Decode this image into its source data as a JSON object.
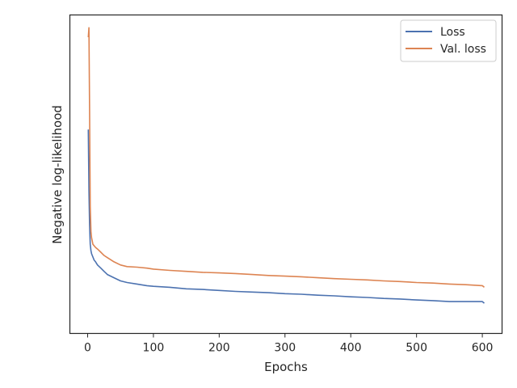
{
  "chart_data": {
    "type": "line",
    "title": "",
    "xlabel": "Epochs",
    "ylabel": "Negative log-likelihood",
    "xlim": [
      -27,
      630
    ],
    "ylim": [
      0,
      100
    ],
    "x_ticks": [
      0,
      100,
      200,
      300,
      400,
      500,
      600
    ],
    "y_ticks_shown": false,
    "grid": false,
    "legend_position": "top-right",
    "series": [
      {
        "name": "Loss",
        "color": "#4c72b0",
        "x": [
          1,
          2,
          3,
          4,
          5,
          6,
          7,
          8,
          10,
          12,
          15,
          20,
          25,
          30,
          40,
          50,
          60,
          75,
          90,
          100,
          125,
          150,
          175,
          200,
          225,
          250,
          275,
          300,
          325,
          350,
          375,
          400,
          425,
          450,
          475,
          500,
          525,
          550,
          575,
          600,
          603
        ],
        "y": [
          64,
          45,
          34,
          28,
          26,
          25,
          24.5,
          24,
          23,
          22.5,
          21.5,
          20.5,
          19.5,
          18.5,
          17.5,
          16.5,
          16,
          15.5,
          15,
          14.8,
          14.5,
          14,
          13.8,
          13.5,
          13.2,
          13,
          12.8,
          12.5,
          12.3,
          12,
          11.8,
          11.5,
          11.3,
          11,
          10.8,
          10.5,
          10.3,
          10,
          10,
          10,
          9.5
        ]
      },
      {
        "name": "Val. loss",
        "color": "#dd8452",
        "x": [
          1,
          2,
          3,
          4,
          5,
          6,
          7,
          8,
          10,
          12,
          15,
          20,
          25,
          30,
          40,
          50,
          60,
          75,
          90,
          100,
          125,
          150,
          175,
          200,
          225,
          250,
          275,
          300,
          325,
          350,
          375,
          400,
          425,
          450,
          475,
          500,
          525,
          550,
          575,
          600,
          603
        ],
        "y": [
          93,
          96,
          70,
          40,
          32,
          30,
          29,
          28,
          27.5,
          27,
          26.5,
          25.5,
          24.5,
          23.8,
          22.5,
          21.5,
          21,
          20.8,
          20.5,
          20.2,
          19.8,
          19.5,
          19.2,
          19,
          18.8,
          18.5,
          18.2,
          18,
          17.8,
          17.5,
          17.2,
          17,
          16.8,
          16.5,
          16.3,
          16,
          15.8,
          15.5,
          15.3,
          15,
          14.5
        ]
      }
    ]
  }
}
